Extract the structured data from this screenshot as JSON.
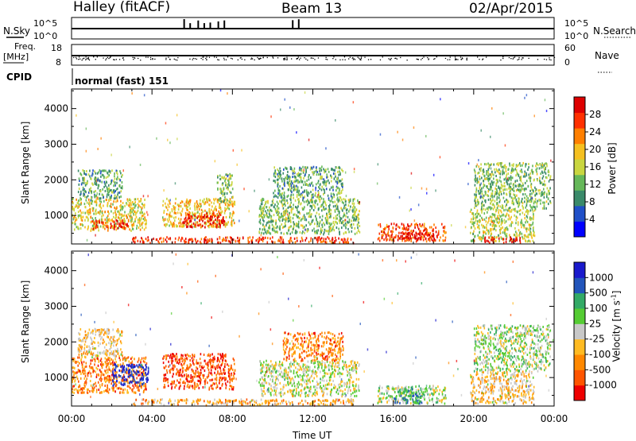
{
  "header": {
    "title": "Halley (fitACF)",
    "beam": "Beam 13",
    "date": "02/Apr/2015"
  },
  "top_panels": {
    "nsky_label": "N.Sky",
    "nsearch_label": "N.Search",
    "noise_ticks": [
      "10^5",
      "10^0"
    ],
    "freq_label": "Freq.",
    "freq_unit": "[MHz]",
    "freq_ticks": [
      "18",
      "8"
    ],
    "nave_label": "Nave",
    "nave_ticks": [
      "60",
      "0"
    ],
    "cpid_label": "CPID",
    "cpid_value": "normal (fast) 151"
  },
  "colors": {
    "power_scale": [
      "#0000ff",
      "#2050c8",
      "#3a8a6a",
      "#66b85a",
      "#c9d640",
      "#f5c020",
      "#ff7f00",
      "#ff3000",
      "#dd0000"
    ],
    "velocity_scale": [
      "#1a1acc",
      "#2255bb",
      "#33aa66",
      "#55cc33",
      "#c8c8c8",
      "#ffbb22",
      "#ff8800",
      "#ff5500",
      "#ee0000"
    ]
  },
  "chart_data": [
    {
      "type": "heatmap",
      "panel": "power",
      "ylabel": "Slant Range [km]",
      "xlabel": "",
      "x_ticks": [
        "00:00",
        "04:00",
        "08:00",
        "12:00",
        "16:00",
        "20:00",
        "00:00"
      ],
      "y_ticks": [
        1000,
        2000,
        3000,
        4000
      ],
      "ylim": [
        200,
        4550
      ],
      "colorbar": {
        "label": "Power [dB]",
        "ticks": [
          "4",
          "8",
          "12",
          "16",
          "20",
          "24",
          "28"
        ]
      },
      "regions": [
        {
          "t0": 0.0,
          "t1": 3.7,
          "r0": 600,
          "r1": 1500,
          "level": 0.55
        },
        {
          "t0": 0.3,
          "t1": 2.5,
          "r0": 1500,
          "r1": 2300,
          "level": 0.35
        },
        {
          "t0": 1.0,
          "t1": 3.0,
          "r0": 650,
          "r1": 900,
          "level": 0.85
        },
        {
          "t0": 4.5,
          "t1": 8.1,
          "r0": 700,
          "r1": 1500,
          "level": 0.6
        },
        {
          "t0": 5.5,
          "t1": 7.6,
          "r0": 700,
          "r1": 1100,
          "level": 0.9
        },
        {
          "t0": 7.2,
          "t1": 8.0,
          "r0": 1400,
          "r1": 2200,
          "level": 0.4
        },
        {
          "t0": 9.3,
          "t1": 14.3,
          "r0": 500,
          "r1": 1500,
          "level": 0.4
        },
        {
          "t0": 10.0,
          "t1": 13.5,
          "r0": 1500,
          "r1": 2400,
          "level": 0.35
        },
        {
          "t0": 15.2,
          "t1": 18.6,
          "r0": 300,
          "r1": 800,
          "level": 0.8
        },
        {
          "t0": 16.3,
          "t1": 18.2,
          "r0": 350,
          "r1": 550,
          "level": 0.95
        },
        {
          "t0": 19.8,
          "t1": 23.0,
          "r0": 300,
          "r1": 1200,
          "level": 0.5
        },
        {
          "t0": 20.5,
          "t1": 22.3,
          "r0": 250,
          "r1": 420,
          "level": 0.95
        },
        {
          "t0": 20.0,
          "t1": 23.8,
          "r0": 1200,
          "r1": 2500,
          "level": 0.4
        },
        {
          "t0": 3.0,
          "t1": 14.0,
          "r0": 250,
          "r1": 420,
          "level": 0.85
        }
      ]
    },
    {
      "type": "heatmap",
      "panel": "velocity",
      "ylabel": "Slant Range [km]",
      "xlabel": "Time UT",
      "x_ticks": [
        "00:00",
        "04:00",
        "08:00",
        "12:00",
        "16:00",
        "20:00",
        "00:00"
      ],
      "y_ticks": [
        1000,
        2000,
        3000,
        4000
      ],
      "ylim": [
        200,
        4550
      ],
      "colorbar": {
        "label": "Velocity [m s^-1]",
        "ticks": [
          "1000",
          "500",
          "100",
          "25",
          "-25",
          "-100",
          "-500",
          "-1000"
        ]
      },
      "regions": [
        {
          "t0": 0.0,
          "t1": 3.7,
          "r0": 600,
          "r1": 1600,
          "level": 0.75
        },
        {
          "t0": 2.0,
          "t1": 3.8,
          "r0": 800,
          "r1": 1400,
          "level": 0.05
        },
        {
          "t0": 0.3,
          "t1": 2.5,
          "r0": 1600,
          "r1": 2400,
          "level": 0.6
        },
        {
          "t0": 4.5,
          "t1": 8.1,
          "r0": 700,
          "r1": 1700,
          "level": 0.85
        },
        {
          "t0": 9.3,
          "t1": 14.3,
          "r0": 500,
          "r1": 1500,
          "level": 0.5
        },
        {
          "t0": 10.5,
          "t1": 13.5,
          "r0": 1500,
          "r1": 2300,
          "level": 0.75
        },
        {
          "t0": 15.2,
          "t1": 18.6,
          "r0": 300,
          "r1": 800,
          "level": 0.45
        },
        {
          "t0": 16.0,
          "t1": 17.5,
          "r0": 300,
          "r1": 700,
          "level": 0.3
        },
        {
          "t0": 19.8,
          "t1": 23.0,
          "r0": 300,
          "r1": 1200,
          "level": 0.6
        },
        {
          "t0": 20.0,
          "t1": 23.8,
          "r0": 1200,
          "r1": 2500,
          "level": 0.45
        },
        {
          "t0": 3.0,
          "t1": 14.0,
          "r0": 250,
          "r1": 420,
          "level": 0.65
        }
      ]
    }
  ]
}
